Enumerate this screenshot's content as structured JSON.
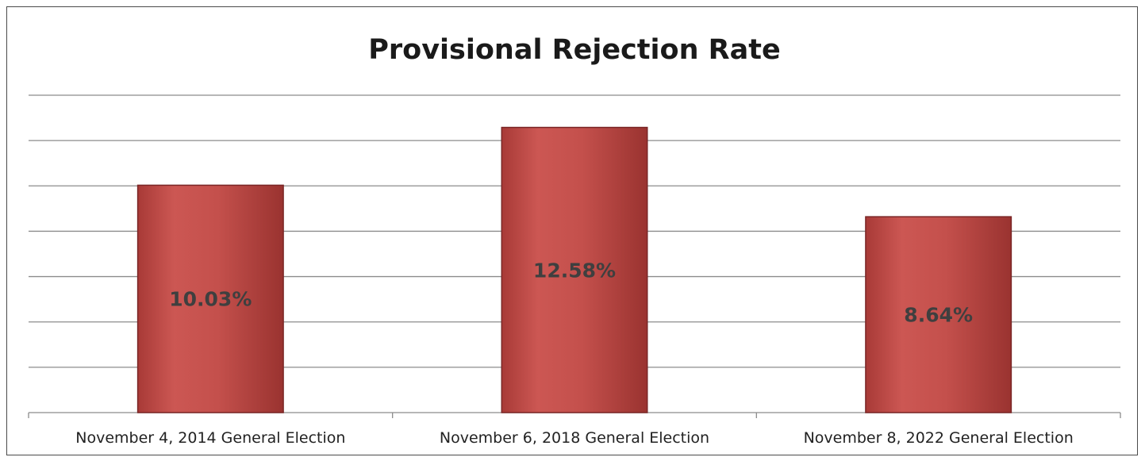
{
  "chart_data": {
    "type": "bar",
    "title": "Provisional Rejection Rate",
    "categories": [
      "November 4, 2014 General Election",
      "November 6, 2018 General Election",
      "November 8, 2022 General Election"
    ],
    "values": [
      10.03,
      12.58,
      8.64
    ],
    "data_labels": [
      "10.03%",
      "12.58%",
      "8.64%"
    ],
    "xlabel": "",
    "ylabel": "",
    "ylim": [
      0,
      14
    ],
    "grid": true,
    "legend": "none",
    "colors": {
      "bar_fill": "#c0504d",
      "bar_edge": "#7a2626",
      "gridline": "#8c8c8c"
    }
  }
}
